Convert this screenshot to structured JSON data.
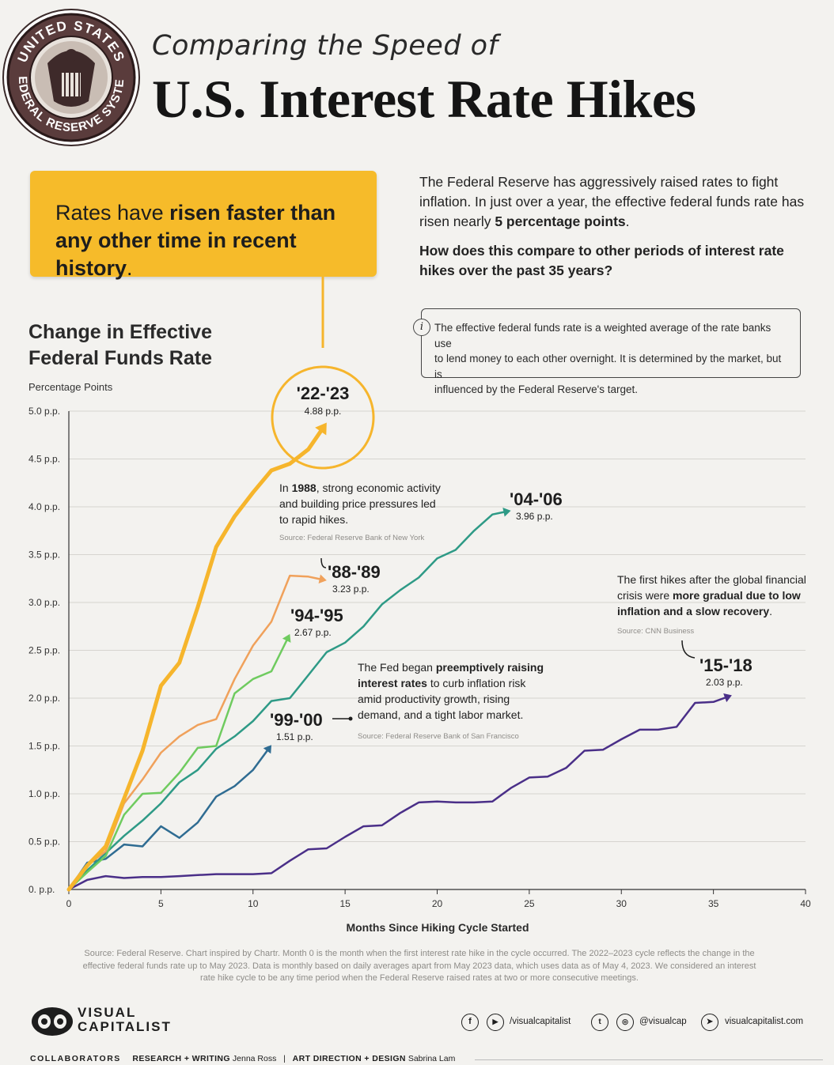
{
  "header": {
    "subtitle": "Comparing the Speed of",
    "title": "U.S. Interest Rate Hikes",
    "seal_text": "UNITED STATES FEDERAL RESERVE SYSTEM"
  },
  "callout": {
    "part1": "Rates have ",
    "bold1": "risen faster than any other time in recent history",
    "part2": "."
  },
  "intro": {
    "p1_text": "The Federal Reserve has aggressively raised rates to fight inflation. In just over a year, the effective federal funds rate has risen nearly ",
    "p1_bold": "5 percentage points",
    "p1_end": ".",
    "question": "How does this compare to other periods of interest rate hikes over the past 35 years?"
  },
  "info": {
    "icon": "i",
    "line1": "The effective federal funds rate is a weighted average of the rate banks use",
    "line2": "to lend money to each other overnight. It is determined by the market, but is",
    "line3": "influenced by the Federal Reserve's target."
  },
  "colors": {
    "c2223": "#f6b52c",
    "c0406": "#2e9a86",
    "c8889": "#f0a15b",
    "c9495": "#6fcb5f",
    "c9900": "#2f6c92",
    "c1518": "#4a2f88",
    "grid": "#d6d4cf",
    "axis": "#333333"
  },
  "annotations": {
    "a1988_pre": "In ",
    "a1988_bold": "1988",
    "a1988_l1": ", strong economic activity",
    "a1988_l2": "and building price pressures led",
    "a1988_l3": "to rapid hikes.",
    "a1988_src": "Source: Federal Reserve Bank of New York",
    "a9900_l1_pre": "The Fed began ",
    "a9900_l1_bold": "preemptively raising",
    "a9900_l2_bold": "interest rates",
    "a9900_l2": " to curb inflation risk",
    "a9900_l3": "amid productivity growth, rising",
    "a9900_l4": "demand, and a tight labor market.",
    "a9900_src": "Source: Federal Reserve Bank of San Francisco",
    "a1518_l1": "The first hikes after the global financial",
    "a1518_l2_pre": "crisis were ",
    "a1518_l2_bold": "more gradual due to low",
    "a1518_l3_bold": "inflation and a slow recovery",
    "a1518_l3": ".",
    "a1518_src": "Source: CNN Business"
  },
  "chart_data": {
    "type": "line",
    "title": "Change in Effective Federal Funds Rate",
    "ylabel": "Percentage Points",
    "xlabel": "Months Since Hiking Cycle Started",
    "xlim": [
      0,
      40
    ],
    "ylim": [
      0,
      5
    ],
    "xticks": [
      "0",
      "5",
      "10",
      "15",
      "20",
      "25",
      "30",
      "35",
      "40"
    ],
    "yticks": [
      "0. p.p.",
      "0.5 p.p.",
      "1.0 p.p.",
      "1.5 p.p.",
      "2.0 p.p.",
      "2.5 p.p.",
      "3.0 p.p.",
      "3.5 p.p.",
      "4.0 p.p.",
      "4.5 p.p.",
      "5.0 p.p."
    ],
    "grid": true,
    "series": [
      {
        "name": "'22-'23",
        "value_label": "4.88 p.p.",
        "color_key": "c2223",
        "x": [
          0,
          1,
          2,
          3,
          4,
          5,
          6,
          7,
          8,
          9,
          10,
          11,
          12,
          13,
          14
        ],
        "y": [
          0,
          0.25,
          0.45,
          0.95,
          1.45,
          2.13,
          2.37,
          2.95,
          3.58,
          3.9,
          4.15,
          4.38,
          4.45,
          4.6,
          4.88
        ]
      },
      {
        "name": "'88-'89",
        "value_label": "3.23 p.p.",
        "color_key": "c8889",
        "x": [
          0,
          1,
          2,
          3,
          4,
          5,
          6,
          7,
          8,
          9,
          10,
          11,
          12,
          13,
          14
        ],
        "y": [
          0,
          0.25,
          0.4,
          0.9,
          1.15,
          1.43,
          1.6,
          1.72,
          1.78,
          2.2,
          2.55,
          2.8,
          3.28,
          3.27,
          3.23
        ]
      },
      {
        "name": "'94-'95",
        "value_label": "2.67 p.p.",
        "color_key": "c9495",
        "x": [
          0,
          1,
          2,
          3,
          4,
          5,
          6,
          7,
          8,
          9,
          10,
          11,
          12
        ],
        "y": [
          0,
          0.18,
          0.35,
          0.78,
          1.0,
          1.01,
          1.22,
          1.48,
          1.5,
          2.05,
          2.2,
          2.28,
          2.67
        ]
      },
      {
        "name": "'04-'06",
        "value_label": "3.96 p.p.",
        "color_key": "c0406",
        "x": [
          0,
          1,
          2,
          3,
          4,
          5,
          6,
          7,
          8,
          9,
          10,
          11,
          12,
          13,
          14,
          15,
          16,
          17,
          18,
          19,
          20,
          21,
          22,
          23,
          24
        ],
        "y": [
          0,
          0.2,
          0.38,
          0.56,
          0.72,
          0.9,
          1.12,
          1.25,
          1.47,
          1.6,
          1.76,
          1.97,
          2.0,
          2.24,
          2.48,
          2.58,
          2.75,
          2.98,
          3.13,
          3.26,
          3.46,
          3.55,
          3.75,
          3.92,
          3.96
        ]
      },
      {
        "name": "'99-'00",
        "value_label": "1.51 p.p.",
        "color_key": "c9900",
        "x": [
          0,
          1,
          2,
          3,
          4,
          5,
          6,
          7,
          8,
          9,
          10,
          11
        ],
        "y": [
          0,
          0.28,
          0.32,
          0.47,
          0.45,
          0.66,
          0.54,
          0.7,
          0.97,
          1.08,
          1.25,
          1.51
        ]
      },
      {
        "name": "'15-'18",
        "value_label": "2.03 p.p.",
        "color_key": "c1518",
        "x": [
          0,
          1,
          2,
          3,
          4,
          5,
          6,
          7,
          8,
          9,
          10,
          11,
          12,
          13,
          14,
          15,
          16,
          17,
          18,
          19,
          20,
          21,
          22,
          23,
          24,
          25,
          26,
          27,
          28,
          29,
          30,
          31,
          32,
          33,
          34,
          35,
          36
        ],
        "y": [
          0,
          0.1,
          0.14,
          0.12,
          0.13,
          0.13,
          0.14,
          0.15,
          0.16,
          0.16,
          0.16,
          0.17,
          0.3,
          0.42,
          0.43,
          0.55,
          0.66,
          0.67,
          0.8,
          0.91,
          0.92,
          0.91,
          0.91,
          0.92,
          1.06,
          1.17,
          1.18,
          1.27,
          1.45,
          1.46,
          1.57,
          1.67,
          1.67,
          1.7,
          1.95,
          1.96,
          2.03
        ]
      }
    ]
  },
  "footer": {
    "source": "Source: Federal Reserve. Chart inspired by Chartr. Month 0 is the month when the first interest rate hike in the cycle occurred. The 2022–2023 cycle reflects the change in the effective federal funds rate up to May 2023. Data is monthly based on daily averages apart from May 2023 data, which uses data as of May 4, 2023. We considered an interest rate hike cycle to be any time period when the Federal Reserve raised rates at two or more consecutive meetings.",
    "logo_line1": "VISUAL",
    "logo_line2": "CAPITALIST",
    "social1": "/visualcapitalist",
    "social2": "@visualcap",
    "social3": "visualcapitalist.com",
    "collab_label": "COLLABORATORS",
    "rw_label": "RESEARCH + WRITING",
    "rw_name": "Jenna Ross",
    "sep": "|",
    "ad_label": "ART DIRECTION + DESIGN",
    "ad_name": "Sabrina Lam"
  }
}
